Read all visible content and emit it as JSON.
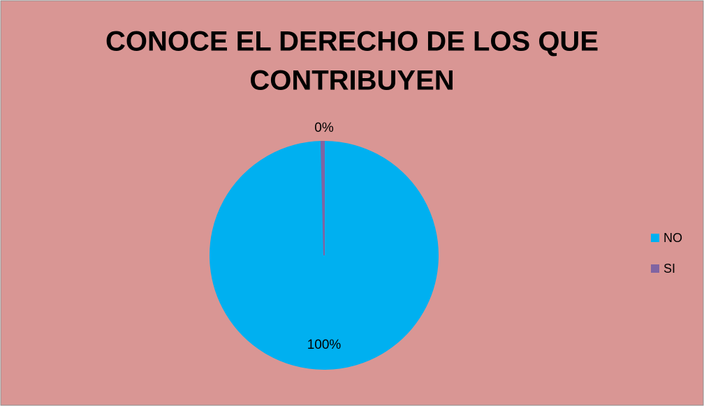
{
  "chart_data": {
    "type": "pie",
    "title": [
      "CONOCE EL DERECHO DE LOS QUE",
      "CONTRIBUYEN"
    ],
    "categories": [
      "NO",
      "SI"
    ],
    "values": [
      99.6,
      0.4
    ],
    "value_labels": [
      "100%",
      "0%"
    ],
    "colors": [
      "#00b0f0",
      "#8064a2"
    ],
    "legend": "right"
  }
}
